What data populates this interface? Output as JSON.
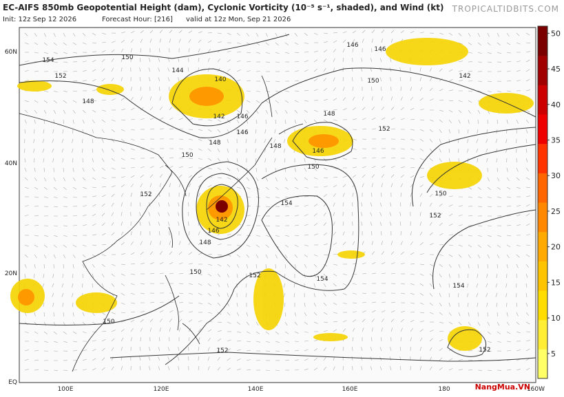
{
  "header": {
    "title": "EC-AIFS 850mb Geopotential Height (dam), Cyclonic Vorticity (10⁻⁵ s⁻¹, shaded), and Wind (kt)",
    "init": "Init: 12z Sep 12 2026",
    "forecast_hour": "Forecast Hour: [216]",
    "valid": "valid at 12z Mon, Sep 21 2026",
    "site": "TROPICALTIDBITS.COM"
  },
  "map": {
    "lat_labels": [
      "60N",
      "40N",
      "20N",
      "EQ"
    ],
    "lon_labels": [
      "100E",
      "120E",
      "140E",
      "160E",
      "180",
      "160W"
    ],
    "contour_labels": [
      146,
      146,
      154,
      150,
      152,
      144,
      140,
      148,
      142,
      146,
      148,
      146,
      148,
      148,
      146,
      152,
      150,
      142,
      150,
      150,
      154,
      152,
      142,
      146,
      148,
      150,
      152,
      154,
      152,
      150,
      154,
      150,
      152,
      152
    ],
    "watermark": "NangMua.VN"
  },
  "colorbar": {
    "lim": [
      1.5,
      51
    ],
    "ticks": [
      5,
      10,
      15,
      20,
      25,
      30,
      35,
      40,
      45,
      50
    ],
    "colors": [
      "#ffff66",
      "#ffee33",
      "#ffdd00",
      "#ffc400",
      "#ffaa00",
      "#ff8800",
      "#ff6600",
      "#ff3300",
      "#ee0000",
      "#cc0000",
      "#a00000",
      "#7a0000"
    ]
  }
}
